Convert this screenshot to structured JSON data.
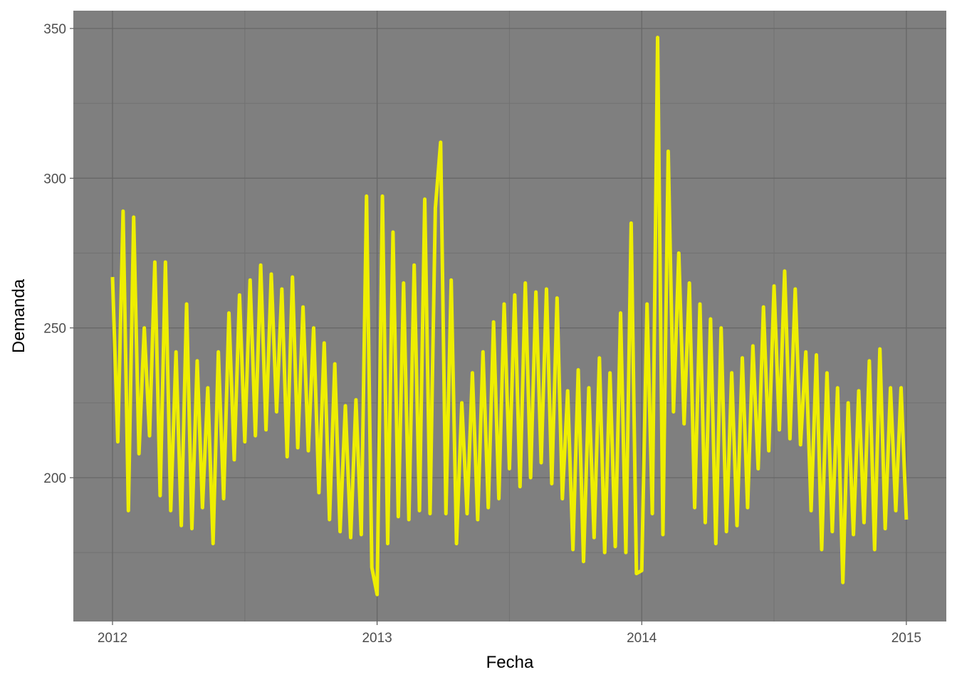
{
  "chart_data": {
    "type": "line",
    "x_label": "Fecha",
    "y_label": "Demanda",
    "x": [
      2012.0,
      2012.02,
      2012.04,
      2012.06,
      2012.08,
      2012.1,
      2012.12,
      2012.14,
      2012.16,
      2012.18,
      2012.2,
      2012.22,
      2012.24,
      2012.26,
      2012.28,
      2012.3,
      2012.32,
      2012.34,
      2012.36,
      2012.38,
      2012.4,
      2012.42,
      2012.44,
      2012.46,
      2012.48,
      2012.5,
      2012.52,
      2012.54,
      2012.56,
      2012.58,
      2012.6,
      2012.62,
      2012.64,
      2012.66,
      2012.68,
      2012.7,
      2012.72,
      2012.74,
      2012.76,
      2012.78,
      2012.8,
      2012.82,
      2012.84,
      2012.86,
      2012.88,
      2012.9,
      2012.92,
      2012.94,
      2012.96,
      2012.98,
      2013.0,
      2013.02,
      2013.04,
      2013.06,
      2013.08,
      2013.1,
      2013.12,
      2013.14,
      2013.16,
      2013.18,
      2013.2,
      2013.22,
      2013.24,
      2013.26,
      2013.28,
      2013.3,
      2013.32,
      2013.34,
      2013.36,
      2013.38,
      2013.4,
      2013.42,
      2013.44,
      2013.46,
      2013.48,
      2013.5,
      2013.52,
      2013.54,
      2013.56,
      2013.58,
      2013.6,
      2013.62,
      2013.64,
      2013.66,
      2013.68,
      2013.7,
      2013.72,
      2013.74,
      2013.76,
      2013.78,
      2013.8,
      2013.82,
      2013.84,
      2013.86,
      2013.88,
      2013.9,
      2013.92,
      2013.94,
      2013.96,
      2013.98,
      2014.0,
      2014.02,
      2014.04,
      2014.06,
      2014.08,
      2014.1,
      2014.12,
      2014.14,
      2014.16,
      2014.18,
      2014.2,
      2014.22,
      2014.24,
      2014.26,
      2014.28,
      2014.3,
      2014.32,
      2014.34,
      2014.36,
      2014.38,
      2014.4,
      2014.42,
      2014.44,
      2014.46,
      2014.48,
      2014.5,
      2014.52,
      2014.54,
      2014.56,
      2014.58,
      2014.6,
      2014.62,
      2014.64,
      2014.66,
      2014.68,
      2014.7,
      2014.72,
      2014.74,
      2014.76,
      2014.78,
      2014.8,
      2014.82,
      2014.84,
      2014.86,
      2014.88,
      2014.9,
      2014.92,
      2014.94,
      2014.96,
      2014.98,
      2015.0
    ],
    "series": [
      {
        "name": "Demanda",
        "color": "#eeee00",
        "values": [
          267,
          212,
          289,
          189,
          287,
          208,
          250,
          214,
          272,
          194,
          272,
          189,
          242,
          184,
          258,
          183,
          239,
          190,
          230,
          178,
          242,
          193,
          255,
          206,
          261,
          212,
          266,
          214,
          271,
          216,
          268,
          222,
          263,
          207,
          267,
          210,
          257,
          209,
          250,
          195,
          245,
          186,
          238,
          182,
          224,
          180,
          226,
          181,
          294,
          170,
          161,
          294,
          178,
          282,
          187,
          265,
          186,
          271,
          189,
          293,
          188,
          290,
          312,
          188,
          266,
          178,
          225,
          188,
          235,
          186,
          242,
          190,
          252,
          193,
          258,
          203,
          261,
          197,
          265,
          200,
          262,
          205,
          263,
          198,
          260,
          193,
          229,
          176,
          236,
          172,
          230,
          180,
          240,
          175,
          235,
          177,
          255,
          175,
          285,
          168,
          169,
          258,
          188,
          347,
          181,
          309,
          222,
          275,
          218,
          265,
          190,
          258,
          185,
          253,
          178,
          250,
          182,
          235,
          184,
          240,
          190,
          244,
          203,
          257,
          209,
          264,
          216,
          269,
          213,
          263,
          211,
          242,
          189,
          241,
          176,
          235,
          182,
          230,
          165,
          225,
          181,
          229,
          185,
          239,
          176,
          243,
          183,
          230,
          189,
          230,
          186
        ]
      }
    ],
    "xlim": [
      2011.852,
      2015.151
    ],
    "xticks": [
      2012,
      2013,
      2014,
      2015
    ],
    "ylim": [
      151.98,
      355.94
    ],
    "yticks": [
      200,
      250,
      300,
      350
    ],
    "grid": true,
    "background": "#7f7f7f"
  }
}
